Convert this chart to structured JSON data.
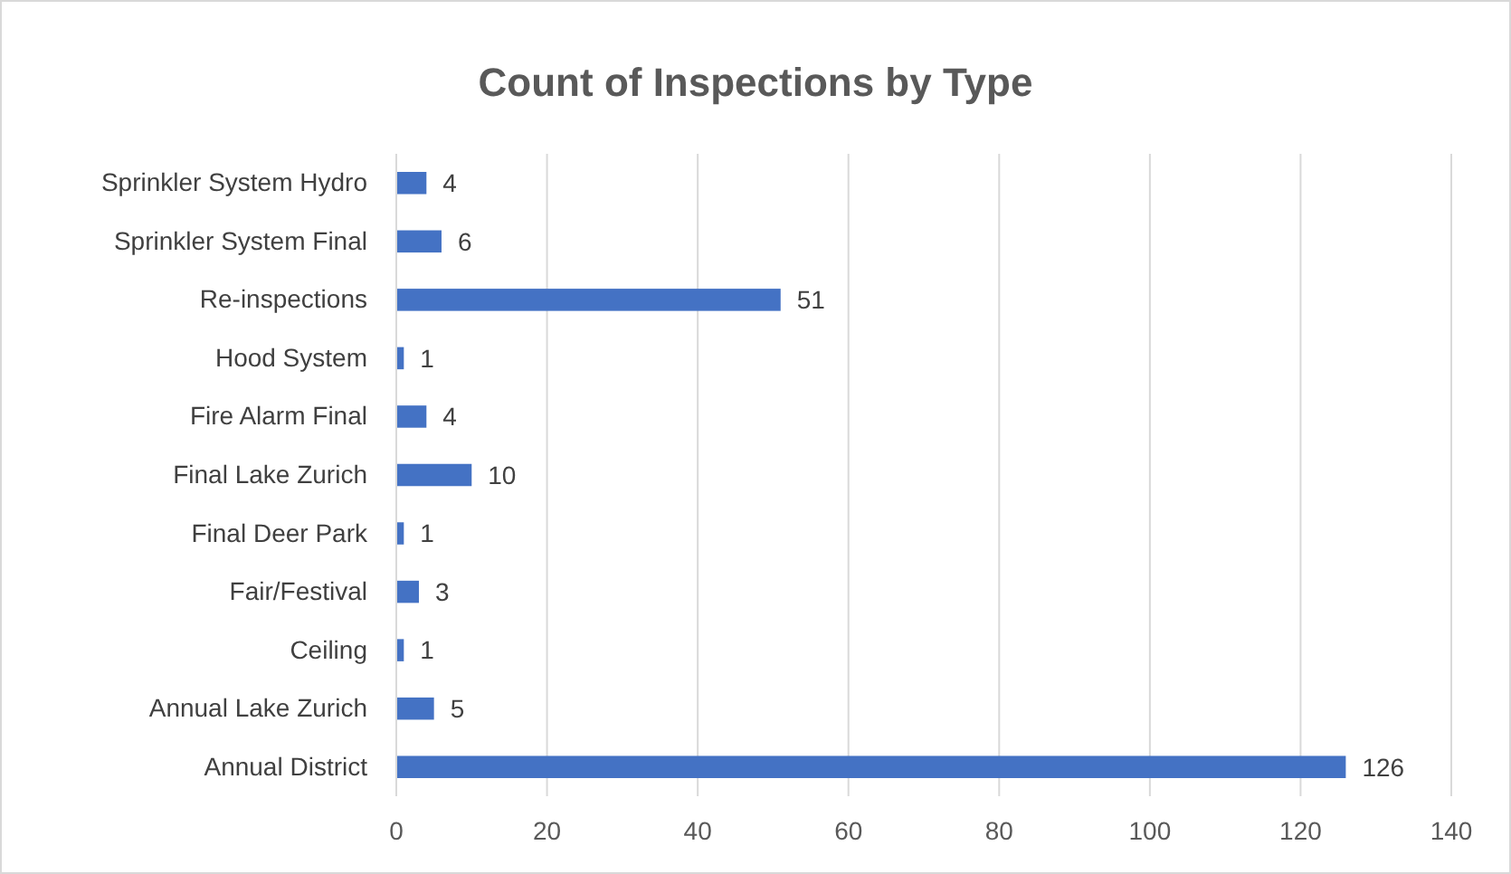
{
  "chart_data": {
    "type": "bar",
    "orientation": "horizontal",
    "title": "Count of Inspections by Type",
    "categories": [
      "Sprinkler System Hydro",
      "Sprinkler System Final",
      "Re-inspections",
      "Hood System",
      "Fire Alarm Final",
      "Final Lake Zurich",
      "Final Deer Park",
      "Fair/Festival",
      "Ceiling",
      "Annual Lake Zurich",
      "Annual District"
    ],
    "values": [
      4,
      6,
      51,
      1,
      4,
      10,
      1,
      3,
      1,
      5,
      126
    ],
    "color": "#4472c4",
    "xlim": [
      0,
      140
    ],
    "xticks": [
      0,
      20,
      40,
      60,
      80,
      100,
      120,
      140
    ],
    "grid": "x",
    "data_labels": true
  }
}
